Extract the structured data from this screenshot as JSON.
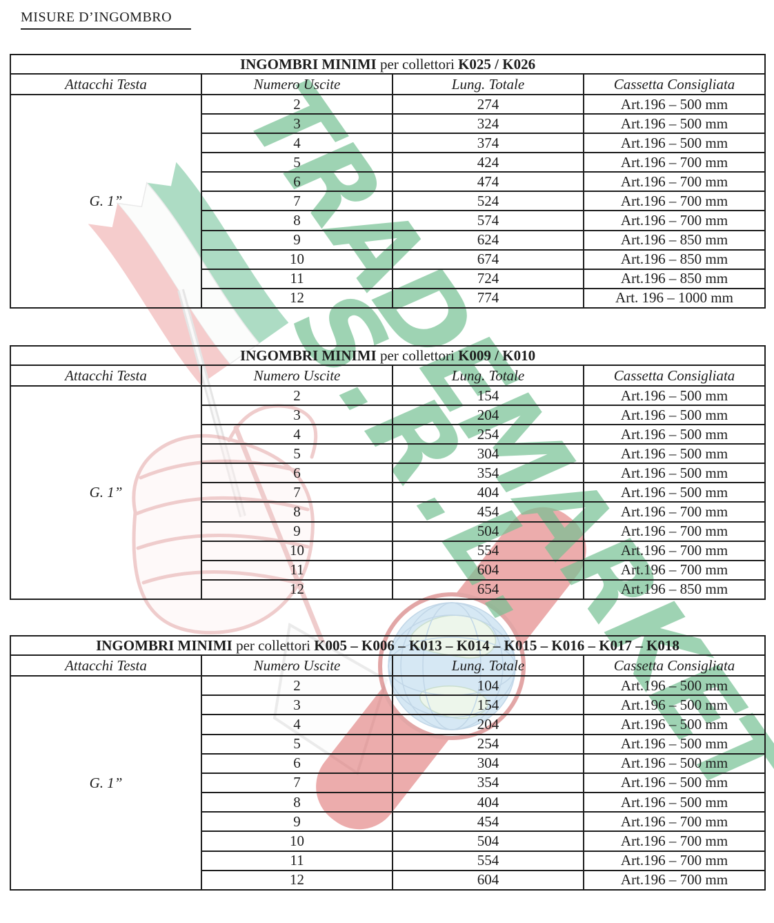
{
  "page_title": "MISURE D’INGOMBRO",
  "watermark": {
    "text_line1": "TRADEMARKET",
    "text_line2": "S.R.L.",
    "colors": {
      "letter_green": "#76c193",
      "flag_green": "#4cb37e",
      "flag_white": "#f7f9f7",
      "flag_red": "#e98f8f",
      "hand_pink": "#dd8f8f",
      "watch_red": "#dd6a6a",
      "globe_blue": "#b5d6ec",
      "globe_land": "#dff0db"
    }
  },
  "column_headers": [
    "Attacchi Testa",
    "Numero Uscite",
    "Lung. Totale",
    "Cassetta Consigliata"
  ],
  "tables": [
    {
      "title_bold": "INGOMBRI MINIMI",
      "title_normal": " per collettori ",
      "title_codes": "K025 / K026",
      "attacchi_testa": "G. 1”",
      "rows": [
        [
          "2",
          "274",
          "Art.196 – 500 mm"
        ],
        [
          "3",
          "324",
          "Art.196 – 500 mm"
        ],
        [
          "4",
          "374",
          "Art.196 – 500 mm"
        ],
        [
          "5",
          "424",
          "Art.196 – 700 mm"
        ],
        [
          "6",
          "474",
          "Art.196 – 700 mm"
        ],
        [
          "7",
          "524",
          "Art.196 – 700 mm"
        ],
        [
          "8",
          "574",
          "Art.196 – 700 mm"
        ],
        [
          "9",
          "624",
          "Art.196 – 850 mm"
        ],
        [
          "10",
          "674",
          "Art.196 – 850 mm"
        ],
        [
          "11",
          "724",
          "Art.196 – 850 mm"
        ],
        [
          "12",
          "774",
          "Art. 196 – 1000 mm"
        ]
      ]
    },
    {
      "title_bold": "INGOMBRI MINIMI",
      "title_normal": " per collettori ",
      "title_codes": "K009 / K010",
      "attacchi_testa": "G. 1”",
      "rows": [
        [
          "2",
          "154",
          "Art.196 – 500 mm"
        ],
        [
          "3",
          "204",
          "Art.196 – 500 mm"
        ],
        [
          "4",
          "254",
          "Art.196 – 500 mm"
        ],
        [
          "5",
          "304",
          "Art.196 – 500 mm"
        ],
        [
          "6",
          "354",
          "Art.196 – 500 mm"
        ],
        [
          "7",
          "404",
          "Art.196 – 500 mm"
        ],
        [
          "8",
          "454",
          "Art.196 – 700 mm"
        ],
        [
          "9",
          "504",
          "Art.196 – 700 mm"
        ],
        [
          "10",
          "554",
          "Art.196 – 700 mm"
        ],
        [
          "11",
          "604",
          "Art.196 – 700 mm"
        ],
        [
          "12",
          "654",
          "Art.196 – 850 mm"
        ]
      ]
    },
    {
      "title_bold": "INGOMBRI MINIMI",
      "title_normal": " per collettori ",
      "title_codes": "K005 – K006 – K013 – K014 – K015 – K016 – K017 – K018",
      "attacchi_testa": "G. 1”",
      "rows": [
        [
          "2",
          "104",
          "Art.196 – 500 mm"
        ],
        [
          "3",
          "154",
          "Art.196 – 500 mm"
        ],
        [
          "4",
          "204",
          "Art.196 – 500 mm"
        ],
        [
          "5",
          "254",
          "Art.196 – 500 mm"
        ],
        [
          "6",
          "304",
          "Art.196 – 500 mm"
        ],
        [
          "7",
          "354",
          "Art.196 – 500 mm"
        ],
        [
          "8",
          "404",
          "Art.196 – 500 mm"
        ],
        [
          "9",
          "454",
          "Art.196 – 700 mm"
        ],
        [
          "10",
          "504",
          "Art.196 – 700 mm"
        ],
        [
          "11",
          "554",
          "Art.196 – 700 mm"
        ],
        [
          "12",
          "604",
          "Art.196 – 700 mm"
        ]
      ]
    }
  ]
}
